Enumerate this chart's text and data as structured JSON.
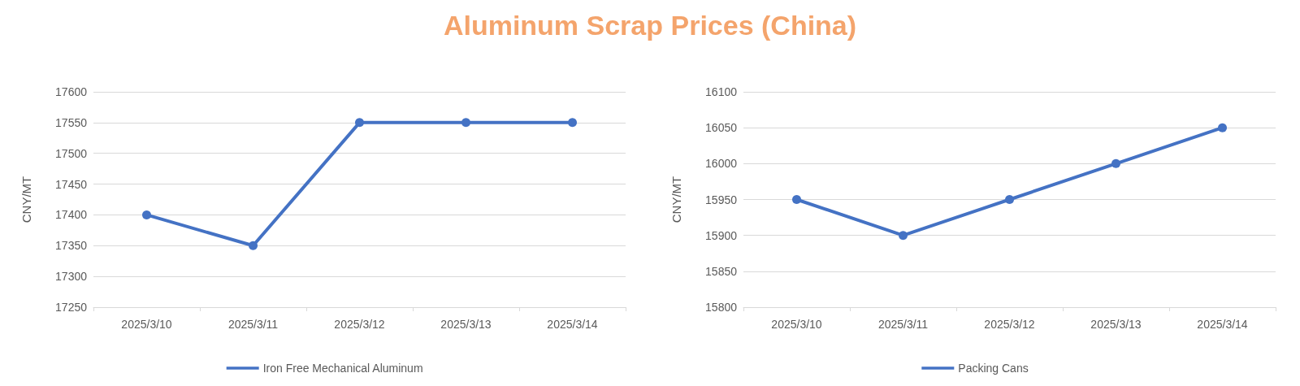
{
  "chart_data": [
    {
      "type": "line",
      "title": "Aluminum Scrap Prices (China)",
      "ylabel": "CNY/MT",
      "categories": [
        "2025/3/10",
        "2025/3/11",
        "2025/3/12",
        "2025/3/13",
        "2025/3/14"
      ],
      "series": [
        {
          "name": "Iron Free Mechanical Aluminum",
          "color": "#4472c4",
          "values": [
            17400,
            17350,
            17550,
            17550,
            17550
          ]
        }
      ],
      "ylim": [
        17250,
        17600
      ],
      "yticks": [
        17250,
        17300,
        17350,
        17400,
        17450,
        17500,
        17550,
        17600
      ],
      "grid": "y",
      "legend": "bottom",
      "marker": "circle",
      "line_style": "solid"
    },
    {
      "type": "line",
      "ylabel": "CNY/MT",
      "categories": [
        "2025/3/10",
        "2025/3/11",
        "2025/3/12",
        "2025/3/13",
        "2025/3/14"
      ],
      "series": [
        {
          "name": "Packing Cans",
          "color": "#4472c4",
          "values": [
            15950,
            15900,
            15950,
            16000,
            16050
          ]
        }
      ],
      "ylim": [
        15800,
        16100
      ],
      "yticks": [
        15800,
        15850,
        15900,
        15950,
        16000,
        16050,
        16100
      ],
      "grid": "y",
      "legend": "bottom",
      "marker": "circle",
      "line_style": "solid"
    }
  ]
}
